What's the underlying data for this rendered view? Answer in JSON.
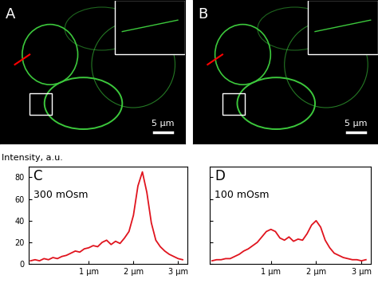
{
  "chart_data": [
    {
      "type": "image",
      "panel_label": "A",
      "scale_bar": "5 μm"
    },
    {
      "type": "image",
      "panel_label": "B",
      "scale_bar": "5 μm"
    },
    {
      "type": "line",
      "panel_label": "C",
      "annotation": "300 mOsm",
      "y_label": "Intensity, a.u.",
      "color": "#e0141e",
      "x": [
        -0.3,
        -0.2,
        -0.1,
        0.0,
        0.1,
        0.2,
        0.3,
        0.4,
        0.5,
        0.6,
        0.7,
        0.8,
        0.9,
        1.0,
        1.1,
        1.2,
        1.3,
        1.4,
        1.5,
        1.6,
        1.7,
        1.8,
        1.9,
        2.0,
        2.1,
        2.2,
        2.3,
        2.4,
        2.5,
        2.6,
        2.7,
        2.8,
        2.9,
        3.0,
        3.1
      ],
      "values": [
        3,
        4,
        3,
        5,
        4,
        6,
        5,
        7,
        8,
        10,
        12,
        11,
        14,
        15,
        17,
        16,
        20,
        22,
        18,
        21,
        19,
        24,
        30,
        45,
        72,
        85,
        66,
        38,
        22,
        16,
        12,
        9,
        7,
        5,
        4
      ],
      "xlim": [
        -0.35,
        3.2
      ],
      "ylim": [
        0,
        90
      ],
      "xticks": [
        {
          "value": 1,
          "label": "1 μm"
        },
        {
          "value": 2,
          "label": "2 μm"
        },
        {
          "value": 3,
          "label": "3 μm"
        }
      ],
      "yticks": [
        0,
        20,
        40,
        60,
        80
      ]
    },
    {
      "type": "line",
      "panel_label": "D",
      "annotation": "100 mOsm",
      "color": "#e0141e",
      "x": [
        -0.3,
        -0.2,
        -0.1,
        0.0,
        0.1,
        0.2,
        0.3,
        0.4,
        0.5,
        0.6,
        0.7,
        0.8,
        0.9,
        1.0,
        1.1,
        1.2,
        1.3,
        1.4,
        1.5,
        1.6,
        1.7,
        1.8,
        1.9,
        2.0,
        2.1,
        2.2,
        2.3,
        2.4,
        2.5,
        2.6,
        2.7,
        2.8,
        2.9,
        3.0,
        3.1
      ],
      "values": [
        3,
        4,
        4,
        5,
        5,
        7,
        9,
        12,
        14,
        17,
        20,
        25,
        30,
        32,
        30,
        24,
        22,
        25,
        21,
        23,
        22,
        28,
        36,
        40,
        34,
        22,
        15,
        10,
        8,
        6,
        5,
        4,
        4,
        3,
        4
      ],
      "xlim": [
        -0.35,
        3.2
      ],
      "ylim": [
        0,
        90
      ],
      "xticks": [
        {
          "value": 1,
          "label": "1 μm"
        },
        {
          "value": 2,
          "label": "2 μm"
        },
        {
          "value": 3,
          "label": "3 μm"
        }
      ],
      "yticks": [
        0,
        20,
        40,
        60,
        80
      ],
      "tick_labels": "x"
    }
  ]
}
